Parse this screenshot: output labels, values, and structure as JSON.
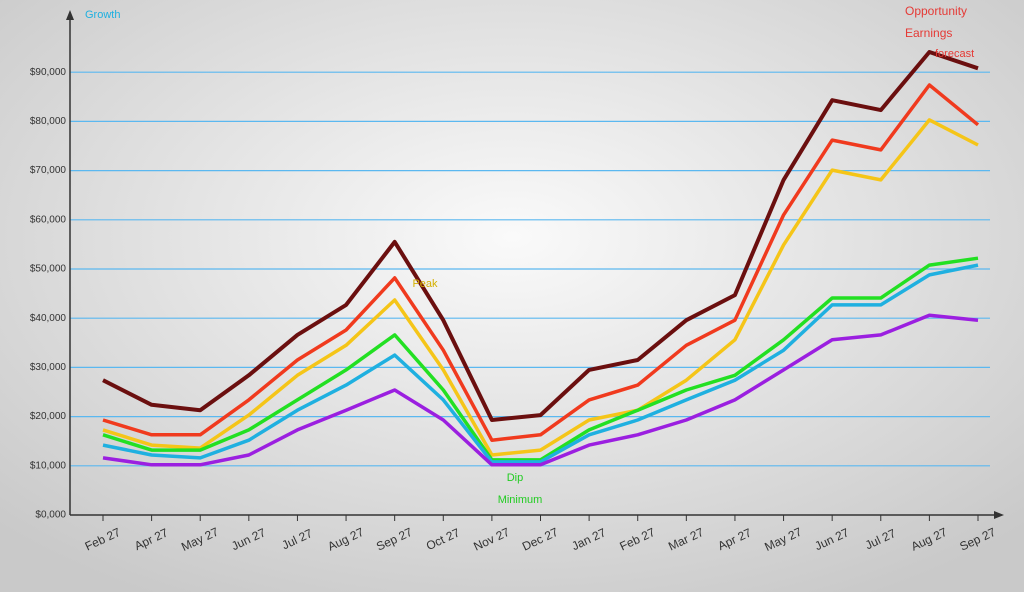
{
  "chart_data": {
    "type": "line",
    "title": "Growth",
    "annotations": [
      {
        "text": "Opportunity",
        "color": "#e53935"
      },
      {
        "text": "Earnings",
        "color": "#e53935"
      },
      {
        "text": "forecast",
        "color": "#e53935"
      },
      {
        "text": "Peak",
        "color": "#d4b000"
      },
      {
        "text": "Dip",
        "color": "#22cc22"
      },
      {
        "text": "Minimum",
        "color": "#22cc22"
      }
    ],
    "categories": [
      "Feb 27",
      "Apr 27",
      "May 27",
      "Jun 27",
      "Jul 27",
      "Aug 27",
      "Sep 27",
      "Oct 27",
      "Nov 27",
      "Dec 27",
      "Jan 27",
      "Feb 27",
      "Mar 27",
      "Apr 27",
      "May 27",
      "Jun 27",
      "Jul 27",
      "Aug 27",
      "Sep 27"
    ],
    "series": [
      {
        "color": "#6b0f0f",
        "values": [
          27400,
          22400,
          21300,
          28400,
          36600,
          42700,
          55500,
          39600,
          19300,
          20300,
          29500,
          31500,
          39600,
          44700,
          68100,
          84300,
          82300,
          94100,
          90800
        ]
      },
      {
        "color": "#f03a1e",
        "values": [
          19300,
          16300,
          16300,
          23400,
          31500,
          37600,
          48200,
          33500,
          15200,
          16300,
          23400,
          26400,
          34500,
          39600,
          61000,
          76200,
          74200,
          87400,
          79300
        ]
      },
      {
        "color": "#f5c518",
        "values": [
          17300,
          14200,
          13600,
          20300,
          28400,
          34500,
          43700,
          29500,
          12200,
          13200,
          19300,
          21300,
          27400,
          35600,
          54900,
          70100,
          68100,
          80300,
          75200
        ]
      },
      {
        "color": "#22e022",
        "values": [
          16300,
          13200,
          13200,
          17300,
          23400,
          29500,
          36600,
          25400,
          11200,
          11200,
          17300,
          21300,
          25400,
          28400,
          35600,
          44100,
          44100,
          50800,
          52200
        ]
      },
      {
        "color": "#1fb0e0",
        "values": [
          14200,
          12200,
          11600,
          15200,
          21300,
          26400,
          32500,
          23400,
          10800,
          10800,
          16300,
          19300,
          23400,
          27400,
          33500,
          42700,
          42700,
          48800,
          50800
        ]
      },
      {
        "color": "#9b1fe0",
        "values": [
          11600,
          10200,
          10200,
          12200,
          17300,
          21300,
          25400,
          19300,
          10200,
          10200,
          14200,
          16300,
          19300,
          23400,
          29500,
          35600,
          36600,
          40600,
          39600
        ]
      }
    ],
    "ylim": [
      0,
      100000
    ],
    "yticks": [
      {
        "value": 0,
        "label": "$0,000"
      },
      {
        "value": 10000,
        "label": "$10,000"
      },
      {
        "value": 20000,
        "label": "$20,000"
      },
      {
        "value": 30000,
        "label": "$30,000"
      },
      {
        "value": 40000,
        "label": "$40,000"
      },
      {
        "value": 50000,
        "label": "$50,000"
      },
      {
        "value": 60000,
        "label": "$60,000"
      },
      {
        "value": 70000,
        "label": "$70,000"
      },
      {
        "value": 80000,
        "label": "$80,000"
      },
      {
        "value": 90000,
        "label": "$90,000"
      }
    ],
    "grid": true
  }
}
